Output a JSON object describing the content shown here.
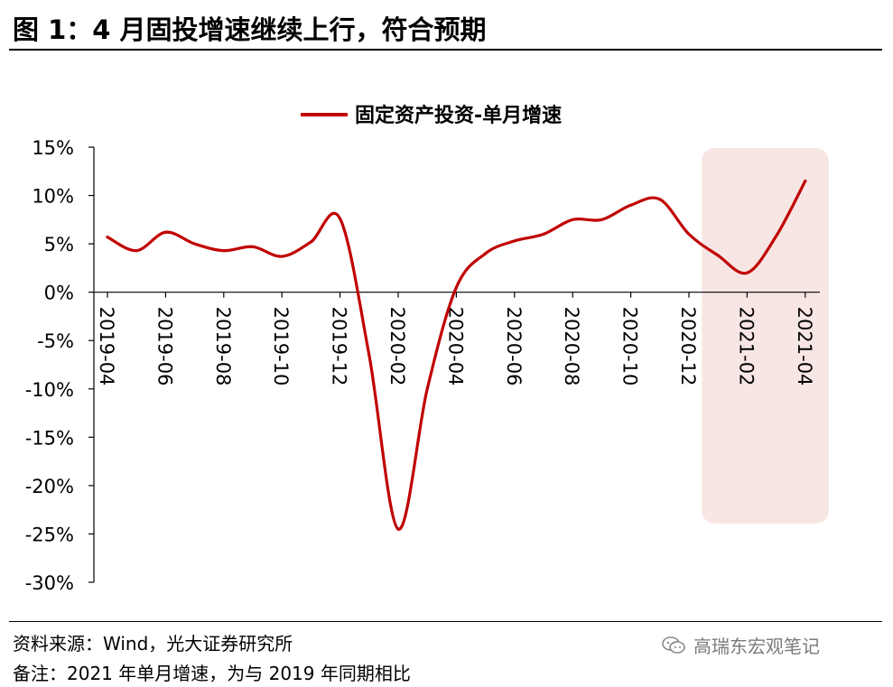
{
  "figure": {
    "title": "图 1：4 月固投增速继续上行，符合预期",
    "source": "资料来源：Wind，光大证券研究所",
    "note": "备注：2021 年单月增速，为与 2019 年同期相比",
    "watermark": "高瑞东宏观笔记"
  },
  "colors": {
    "line": "#c00000",
    "highlight": "#f7e6e4"
  },
  "chart_data": {
    "type": "line",
    "title": "",
    "xlabel": "",
    "ylabel": "",
    "legend": "top-center",
    "ylim": [
      -30,
      15
    ],
    "y_ticks": [
      15,
      10,
      5,
      0,
      -5,
      -10,
      -15,
      -20,
      -25,
      -30
    ],
    "y_tick_labels": [
      "15%",
      "10%",
      "5%",
      "0%",
      "-5%",
      "-10%",
      "-15%",
      "-20%",
      "-25%",
      "-30%"
    ],
    "x_tick_labels": [
      "2019-04",
      "2019-06",
      "2019-08",
      "2019-10",
      "2019-12",
      "2020-02",
      "2020-04",
      "2020-06",
      "2020-08",
      "2020-10",
      "2020-12",
      "2021-02",
      "2021-04"
    ],
    "categories": [
      "2019-04",
      "2019-05",
      "2019-06",
      "2019-07",
      "2019-08",
      "2019-09",
      "2019-10",
      "2019-11",
      "2019-12",
      "2020-01",
      "2020-02",
      "2020-03",
      "2020-04",
      "2020-05",
      "2020-06",
      "2020-07",
      "2020-08",
      "2020-09",
      "2020-10",
      "2020-11",
      "2020-12",
      "2021-01",
      "2021-02",
      "2021-03",
      "2021-04"
    ],
    "series": [
      {
        "name": "固定资产投资-单月增速",
        "values": [
          5.7,
          4.3,
          6.2,
          5.0,
          4.3,
          4.7,
          3.7,
          5.2,
          7.6,
          -6.5,
          -24.5,
          -10.0,
          0.5,
          4.0,
          5.3,
          6.0,
          7.5,
          7.5,
          9.0,
          9.6,
          6.0,
          3.8,
          2.0,
          5.8,
          11.5
        ]
      }
    ],
    "highlight": {
      "from": "2021-01",
      "to": "2021-04"
    }
  }
}
